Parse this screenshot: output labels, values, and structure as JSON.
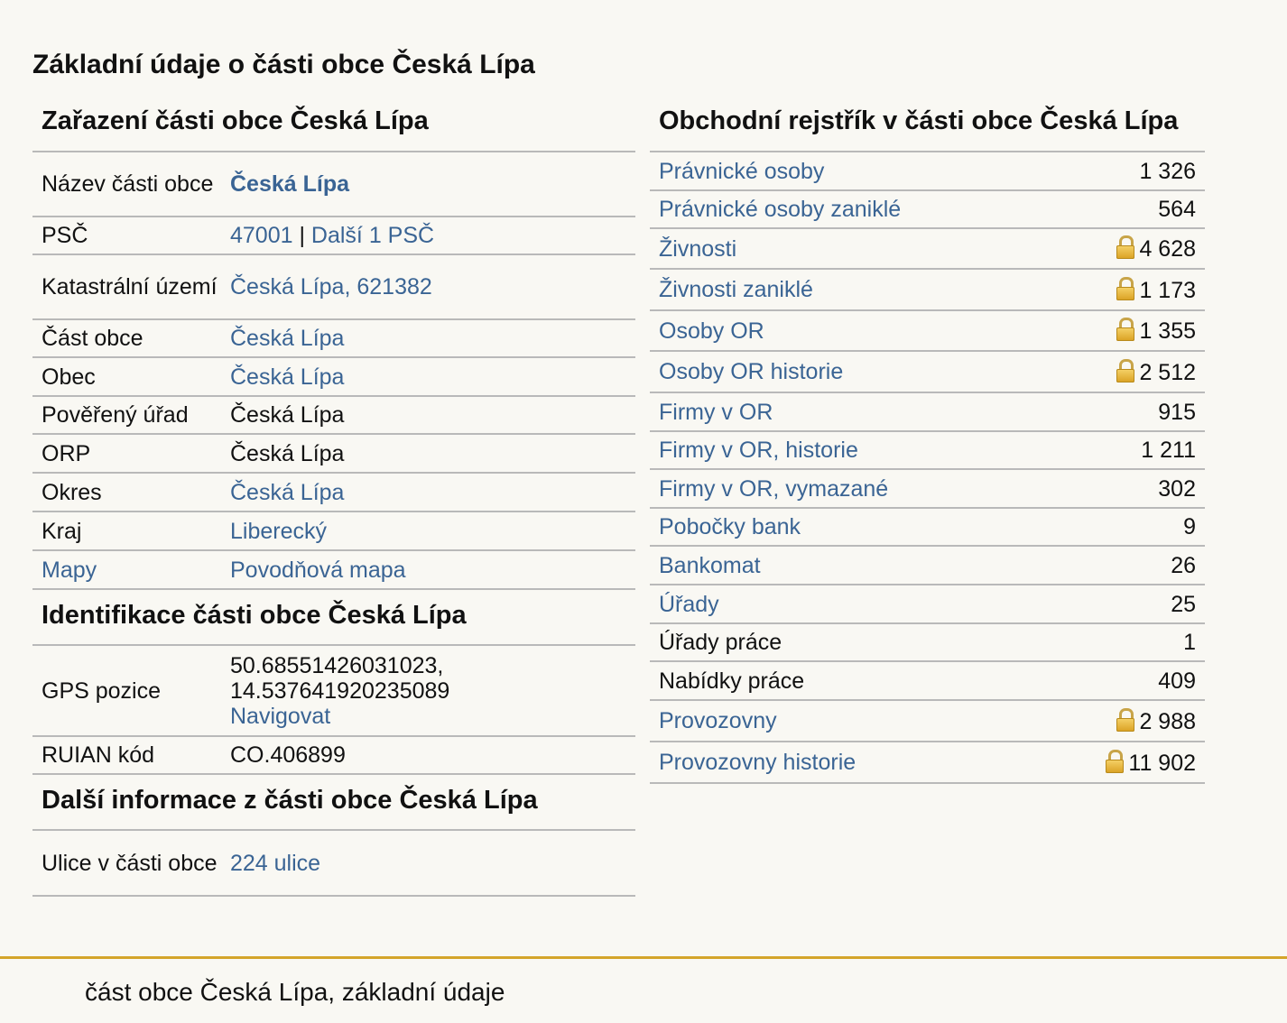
{
  "page": {
    "title": "Základní údaje o části obce Česká Lípa",
    "footer": "část obce Česká Lípa, základní údaje"
  },
  "zarazeni": {
    "title": "Zařazení části obce Česká Lípa",
    "rows": [
      {
        "label": "Název části obce",
        "value": "Česká Lípa"
      },
      {
        "label": "PSČ",
        "value_link": "47001",
        "separator": " | ",
        "value_link2": "Další 1 PSČ"
      },
      {
        "label": "Katastrální území",
        "value": "Česká Lípa, 621382"
      },
      {
        "label": "Část obce",
        "value": "Česká Lípa"
      },
      {
        "label": "Obec",
        "value": "Česká Lípa"
      },
      {
        "label": "Pověřený úřad",
        "value": "Česká Lípa"
      },
      {
        "label": "ORP",
        "value": "Česká Lípa"
      },
      {
        "label": "Okres",
        "value": "Česká Lípa"
      },
      {
        "label": "Kraj",
        "value": "Liberecký"
      },
      {
        "label": "Mapy",
        "value": "Povodňová mapa"
      }
    ]
  },
  "identifikace": {
    "title": "Identifikace části obce Česká Lípa",
    "gps_label": "GPS pozice",
    "gps_lat": "50.68551426031023,",
    "gps_lon": "14.537641920235089",
    "navigate": "Navigovat",
    "ruian_label": "RUIAN kód",
    "ruian_value": "CO.406899"
  },
  "dalsi": {
    "title": "Další informace z části obce Česká Lípa",
    "streets_label": "Ulice v části obce",
    "streets_value": "224 ulice"
  },
  "rejstrik": {
    "title": "Obchodní rejstřík v části obce Česká Lípa",
    "lock_icon": "padlock-icon",
    "rows": [
      {
        "name": "Právnické osoby",
        "count": "1 326",
        "locked": false,
        "link": true
      },
      {
        "name": "Právnické osoby zaniklé",
        "count": "564",
        "locked": false,
        "link": true
      },
      {
        "name": "Živnosti",
        "count": "4 628",
        "locked": true,
        "link": true
      },
      {
        "name": "Živnosti zaniklé",
        "count": "1 173",
        "locked": true,
        "link": true
      },
      {
        "name": "Osoby OR",
        "count": "1 355",
        "locked": true,
        "link": true
      },
      {
        "name": "Osoby OR historie",
        "count": "2 512",
        "locked": true,
        "link": true
      },
      {
        "name": "Firmy v OR",
        "count": "915",
        "locked": false,
        "link": true
      },
      {
        "name": "Firmy v OR, historie",
        "count": "1 211",
        "locked": false,
        "link": true
      },
      {
        "name": "Firmy v OR, vymazané",
        "count": "302",
        "locked": false,
        "link": true
      },
      {
        "name": "Pobočky bank",
        "count": "9",
        "locked": false,
        "link": true
      },
      {
        "name": "Bankomat",
        "count": "26",
        "locked": false,
        "link": true
      },
      {
        "name": "Úřady",
        "count": "25",
        "locked": false,
        "link": true
      },
      {
        "name": "Úřady práce",
        "count": "1",
        "locked": false,
        "link": false
      },
      {
        "name": "Nabídky práce",
        "count": "409",
        "locked": false,
        "link": false
      },
      {
        "name": "Provozovny",
        "count": "2 988",
        "locked": true,
        "link": true
      },
      {
        "name": "Provozovny historie",
        "count": "11 902",
        "locked": true,
        "link": true
      }
    ]
  },
  "colors": {
    "link": "#3a6494",
    "footer_line": "#d4a52a",
    "background": "#f9f8f3"
  }
}
